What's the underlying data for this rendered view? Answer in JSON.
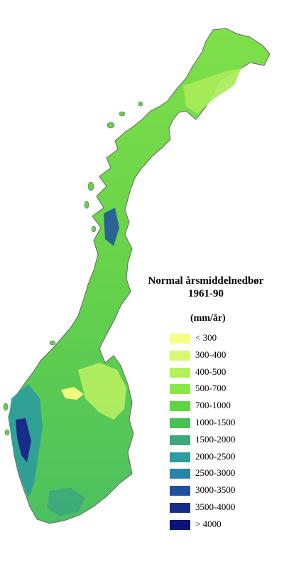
{
  "map": {
    "title_line1": "Normal årsmiddelnedbør",
    "title_line2": "1961-90",
    "unit": "(mm/år)"
  },
  "legend": [
    {
      "label": "< 300",
      "color": "#f8fc80"
    },
    {
      "label": "300-400",
      "color": "#d8f870"
    },
    {
      "label": "400-500",
      "color": "#b4f058"
    },
    {
      "label": "500-700",
      "color": "#88e848"
    },
    {
      "label": "700-1000",
      "color": "#5cd640"
    },
    {
      "label": "1000-1500",
      "color": "#48c058"
    },
    {
      "label": "1500-2000",
      "color": "#3ca87c"
    },
    {
      "label": "2000-2500",
      "color": "#2c9c9c"
    },
    {
      "label": "2500-3000",
      "color": "#2884a8"
    },
    {
      "label": "3000-3500",
      "color": "#2050a0"
    },
    {
      "label": "3500-4000",
      "color": "#182c88"
    },
    {
      "label": "> 4000",
      "color": "#0c1478"
    }
  ]
}
